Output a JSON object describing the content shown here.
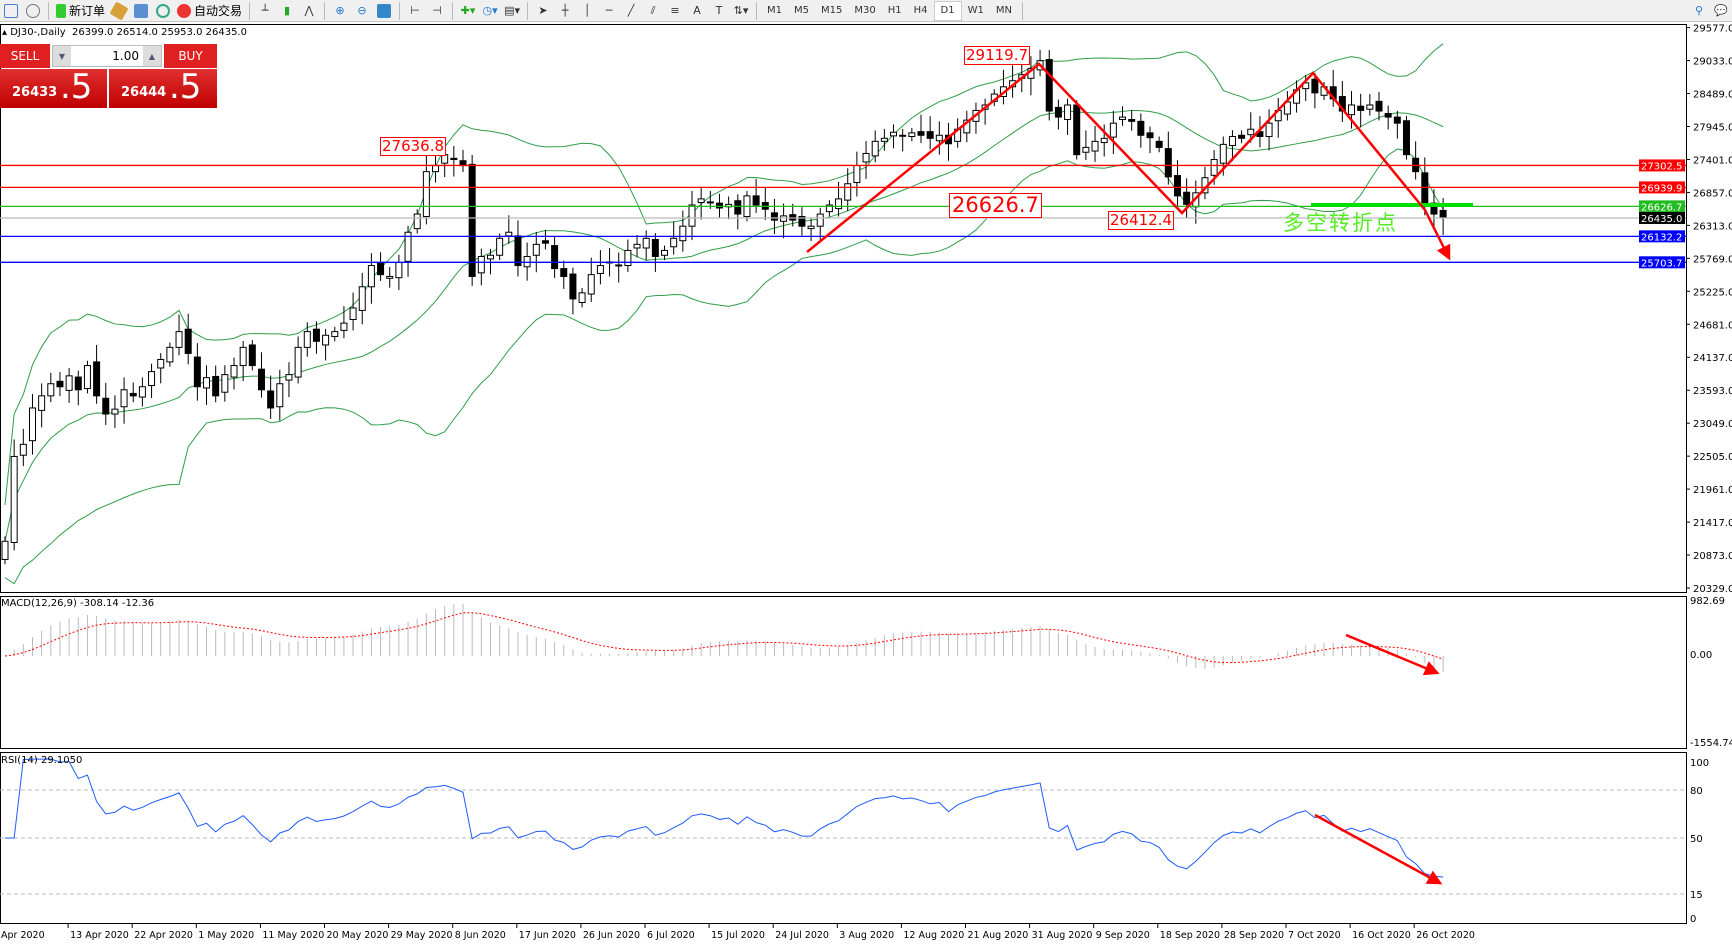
{
  "toolbar": {
    "new_order": "新订单",
    "auto_trading": "自动交易",
    "timeframes": [
      "M1",
      "M5",
      "M15",
      "M30",
      "H1",
      "H4",
      "D1",
      "W1",
      "MN"
    ],
    "active_timeframe": "D1"
  },
  "header": {
    "symbol": "DJ30-,Daily",
    "ohlc": "26399.0 26514.0 25953.0 26435.0"
  },
  "trade_panel": {
    "sell_label": "SELL",
    "buy_label": "BUY",
    "lot": "1.00",
    "sell_price_main": "26433",
    "sell_price_pips": ".5",
    "buy_price_main": "26444",
    "buy_price_pips": ".5"
  },
  "annotations": {
    "peak1": "27636.8",
    "peak2": "29119.7",
    "level": "26626.7",
    "trough": "26412.4",
    "pivot_text": "多空转折点"
  },
  "colors": {
    "bull_bear": "#000000",
    "bands": "#2e9e48",
    "arrow": "#ff0000",
    "macd_signal": "#ff0000",
    "rsi": "#1e5aff",
    "green_level": "#00e000"
  },
  "chart_data": {
    "type": "candlestick",
    "price_axis": {
      "ticks": [
        "29577.0",
        "29033.0",
        "28489.0",
        "27945.0",
        "27401.0",
        "26857.0",
        "26313.0",
        "25769.0",
        "25225.0",
        "24681.0",
        "24137.0",
        "23593.0",
        "23049.0",
        "22505.0",
        "21961.0",
        "21417.0",
        "20873.0",
        "20329.0"
      ],
      "range": [
        20329,
        29577
      ]
    },
    "levels": [
      {
        "value": "27302.5",
        "color": "#ff0000"
      },
      {
        "value": "26939.9",
        "color": "#ff0000"
      },
      {
        "value": "26626.7",
        "color": "#22bb22"
      },
      {
        "value": "26435.0",
        "color": "#000000"
      },
      {
        "value": "26132.2",
        "color": "#0000ff"
      },
      {
        "value": "25703.7",
        "color": "#0000ff"
      }
    ],
    "dates": [
      "Apr 2020",
      "13 Apr 2020",
      "22 Apr 2020",
      "1 May 2020",
      "11 May 2020",
      "20 May 2020",
      "29 May 2020",
      "8 Jun 2020",
      "17 Jun 2020",
      "26 Jun 2020",
      "6 Jul 2020",
      "15 Jul 2020",
      "24 Jul 2020",
      "3 Aug 2020",
      "12 Aug 2020",
      "21 Aug 2020",
      "31 Aug 2020",
      "9 Sep 2020",
      "18 Sep 2020",
      "28 Sep 2020",
      "7 Oct 2020",
      "16 Oct 2020",
      "26 Oct 2020"
    ],
    "closes": [
      21100,
      22500,
      22700,
      23300,
      23500,
      23700,
      23650,
      23830,
      23600,
      24000,
      23500,
      23200,
      23280,
      23600,
      23500,
      23650,
      23900,
      24100,
      24300,
      24560,
      24200,
      23650,
      23800,
      23500,
      23850,
      24000,
      24300,
      24000,
      23600,
      23300,
      23700,
      23850,
      24300,
      24560,
      24400,
      24500,
      24560,
      24700,
      24950,
      25300,
      25650,
      25500,
      25470,
      25700,
      26200,
      26500,
      27200,
      27300,
      27480,
      27400,
      27300,
      25470,
      25800,
      25820,
      26100,
      26200,
      25650,
      25800,
      26000,
      26020,
      25600,
      25470,
      25100,
      25200,
      25500,
      25650,
      25700,
      25650,
      25900,
      26000,
      26100,
      25800,
      25900,
      26100,
      26300,
      26650,
      26750,
      26700,
      26600,
      26660,
      26500,
      26800,
      26650,
      26580,
      26400,
      26470,
      26400,
      26300,
      26300,
      26500,
      26650,
      26750,
      27000,
      27300,
      27500,
      27700,
      27750,
      27850,
      27800,
      27840,
      27800,
      27750,
      27800,
      27660,
      27900,
      28050,
      28210,
      28300,
      28480,
      28600,
      28700,
      28800,
      28900,
      29030,
      28200,
      28100,
      28300,
      27480,
      27600,
      27700,
      27750,
      28000,
      28100,
      28030,
      27800,
      27760,
      27600,
      27115,
      26800,
      26660,
      26850,
      27100,
      27400,
      27650,
      27780,
      27750,
      27900,
      27780,
      28000,
      28210,
      28350,
      28550,
      28665,
      28500,
      28600,
      28400,
      28200,
      28300,
      28210,
      28300,
      28200,
      28100,
      28000,
      27480,
      27200,
      26660,
      26500,
      26435
    ],
    "macd": {
      "label": "MACD(12,26,9) -308.14 -12.36",
      "ticks": [
        "982.69",
        "0.00",
        "-1554.74"
      ],
      "range": [
        -1554.74,
        982.69
      ]
    },
    "rsi": {
      "label": "RSI(14) 29.1050",
      "ticks": [
        "100",
        "80",
        "50",
        "15",
        "0"
      ],
      "range": [
        0,
        100
      ]
    }
  }
}
